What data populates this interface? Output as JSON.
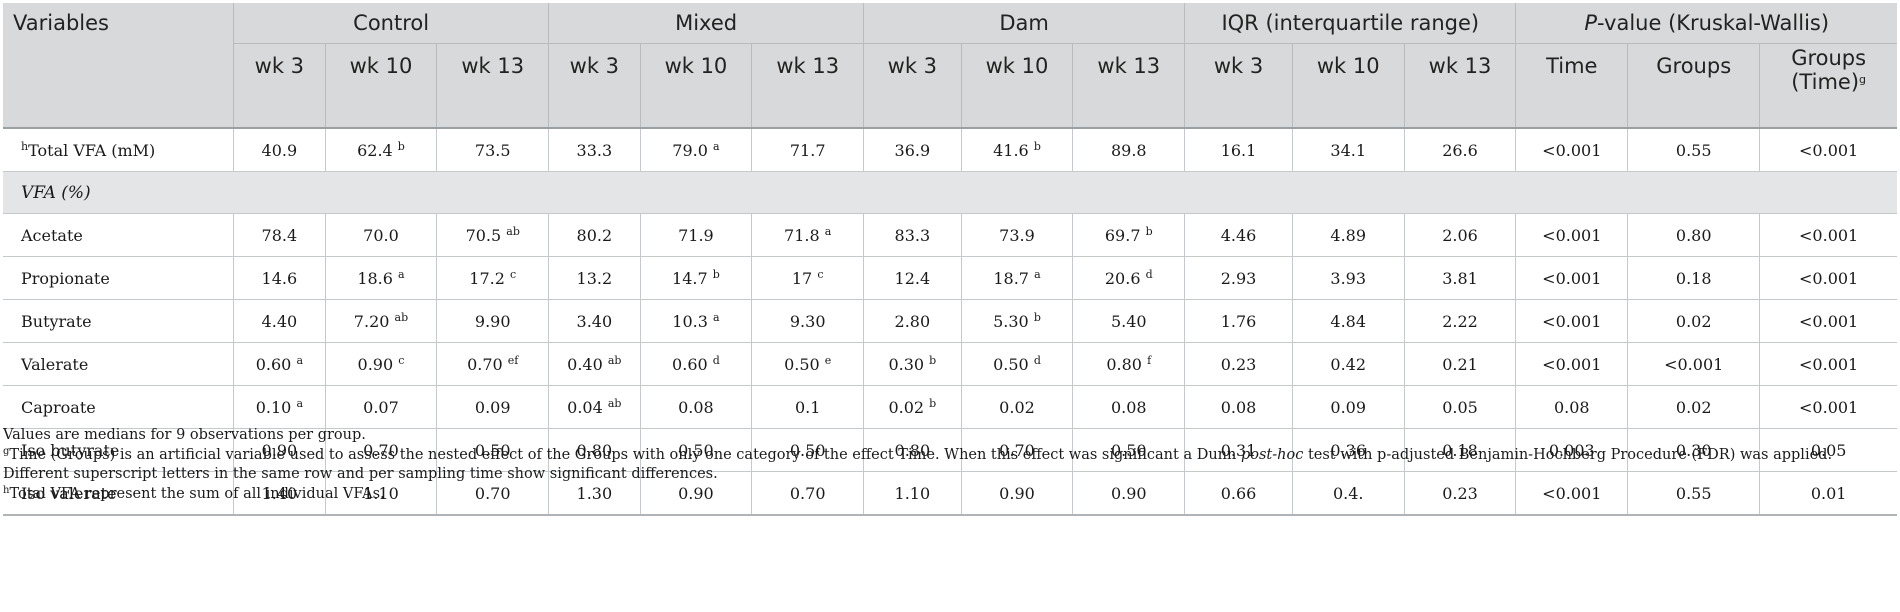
{
  "table": {
    "header_variables": "Variables",
    "groups": [
      "Control",
      "Mixed",
      "Dam",
      "IQR (interquartile range)"
    ],
    "pvalue_header": {
      "italic": "P",
      "rest": "-value (Kruskal-Wallis)"
    },
    "weeks": [
      "wk 3",
      "wk 10",
      "wk 13"
    ],
    "pvalue_subheaders": {
      "time": "Time",
      "groups": "Groups",
      "groups_time": "Groups (Time)",
      "groups_time_sup": "g"
    },
    "section_label": "VFA (%)",
    "total_row": {
      "label_sup": "h",
      "label": "Total VFA (mM)",
      "cells": [
        {
          "v": "40.9",
          "s": ""
        },
        {
          "v": "62.4",
          "s": "b"
        },
        {
          "v": "73.5",
          "s": ""
        },
        {
          "v": "33.3",
          "s": ""
        },
        {
          "v": "79.0",
          "s": "a"
        },
        {
          "v": "71.7",
          "s": ""
        },
        {
          "v": "36.9",
          "s": ""
        },
        {
          "v": "41.6",
          "s": "b"
        },
        {
          "v": "89.8",
          "s": ""
        },
        {
          "v": "16.1",
          "s": ""
        },
        {
          "v": "34.1",
          "s": ""
        },
        {
          "v": "26.6",
          "s": ""
        },
        {
          "v": "<0.001",
          "s": ""
        },
        {
          "v": "0.55",
          "s": ""
        },
        {
          "v": "<0.001",
          "s": ""
        }
      ]
    },
    "rows": [
      {
        "label": "Acetate",
        "cells": [
          {
            "v": "78.4",
            "s": ""
          },
          {
            "v": "70.0",
            "s": ""
          },
          {
            "v": "70.5",
            "s": "ab"
          },
          {
            "v": "80.2",
            "s": ""
          },
          {
            "v": "71.9",
            "s": ""
          },
          {
            "v": "71.8",
            "s": "a"
          },
          {
            "v": "83.3",
            "s": ""
          },
          {
            "v": "73.9",
            "s": ""
          },
          {
            "v": "69.7",
            "s": "b"
          },
          {
            "v": "4.46",
            "s": ""
          },
          {
            "v": "4.89",
            "s": ""
          },
          {
            "v": "2.06",
            "s": ""
          },
          {
            "v": "<0.001",
            "s": ""
          },
          {
            "v": "0.80",
            "s": ""
          },
          {
            "v": "<0.001",
            "s": ""
          }
        ]
      },
      {
        "label": "Propionate",
        "cells": [
          {
            "v": "14.6",
            "s": ""
          },
          {
            "v": "18.6",
            "s": "a"
          },
          {
            "v": "17.2",
            "s": "c"
          },
          {
            "v": "13.2",
            "s": ""
          },
          {
            "v": "14.7",
            "s": "b"
          },
          {
            "v": "17",
            "s": "c"
          },
          {
            "v": "12.4",
            "s": ""
          },
          {
            "v": "18.7",
            "s": "a"
          },
          {
            "v": "20.6",
            "s": "d"
          },
          {
            "v": "2.93",
            "s": ""
          },
          {
            "v": "3.93",
            "s": ""
          },
          {
            "v": "3.81",
            "s": ""
          },
          {
            "v": "<0.001",
            "s": ""
          },
          {
            "v": "0.18",
            "s": ""
          },
          {
            "v": "<0.001",
            "s": ""
          }
        ]
      },
      {
        "label": "Butyrate",
        "cells": [
          {
            "v": "4.40",
            "s": ""
          },
          {
            "v": "7.20",
            "s": "ab"
          },
          {
            "v": "9.90",
            "s": ""
          },
          {
            "v": "3.40",
            "s": ""
          },
          {
            "v": "10.3",
            "s": "a"
          },
          {
            "v": "9.30",
            "s": ""
          },
          {
            "v": "2.80",
            "s": ""
          },
          {
            "v": "5.30",
            "s": "b"
          },
          {
            "v": "5.40",
            "s": ""
          },
          {
            "v": "1.76",
            "s": ""
          },
          {
            "v": "4.84",
            "s": ""
          },
          {
            "v": "2.22",
            "s": ""
          },
          {
            "v": "<0.001",
            "s": ""
          },
          {
            "v": "0.02",
            "s": ""
          },
          {
            "v": "<0.001",
            "s": ""
          }
        ]
      },
      {
        "label": "Valerate",
        "cells": [
          {
            "v": "0.60",
            "s": "a"
          },
          {
            "v": "0.90",
            "s": "c"
          },
          {
            "v": "0.70",
            "s": "ef"
          },
          {
            "v": "0.40",
            "s": "ab"
          },
          {
            "v": "0.60",
            "s": "d"
          },
          {
            "v": "0.50",
            "s": "e"
          },
          {
            "v": "0.30",
            "s": "b"
          },
          {
            "v": "0.50",
            "s": "d"
          },
          {
            "v": "0.80",
            "s": "f"
          },
          {
            "v": "0.23",
            "s": ""
          },
          {
            "v": "0.42",
            "s": ""
          },
          {
            "v": "0.21",
            "s": ""
          },
          {
            "v": "<0.001",
            "s": ""
          },
          {
            "v": "<0.001",
            "s": ""
          },
          {
            "v": "<0.001",
            "s": ""
          }
        ]
      },
      {
        "label": "Caproate",
        "cells": [
          {
            "v": "0.10",
            "s": "a"
          },
          {
            "v": "0.07",
            "s": ""
          },
          {
            "v": "0.09",
            "s": ""
          },
          {
            "v": "0.04",
            "s": "ab"
          },
          {
            "v": "0.08",
            "s": ""
          },
          {
            "v": "0.1",
            "s": ""
          },
          {
            "v": "0.02",
            "s": "b"
          },
          {
            "v": "0.02",
            "s": ""
          },
          {
            "v": "0.08",
            "s": ""
          },
          {
            "v": "0.08",
            "s": ""
          },
          {
            "v": "0.09",
            "s": ""
          },
          {
            "v": "0.05",
            "s": ""
          },
          {
            "v": "0.08",
            "s": ""
          },
          {
            "v": "0.02",
            "s": ""
          },
          {
            "v": "<0.001",
            "s": ""
          }
        ]
      },
      {
        "label": "Iso butyrate",
        "cells": [
          {
            "v": "0.90",
            "s": ""
          },
          {
            "v": "0.70",
            "s": ""
          },
          {
            "v": "0.50",
            "s": ""
          },
          {
            "v": "0.80",
            "s": ""
          },
          {
            "v": "0.50",
            "s": ""
          },
          {
            "v": "0.50",
            "s": ""
          },
          {
            "v": "0.80",
            "s": ""
          },
          {
            "v": "0.70",
            "s": ""
          },
          {
            "v": "0.50",
            "s": ""
          },
          {
            "v": "0.31",
            "s": ""
          },
          {
            "v": "0.36",
            "s": ""
          },
          {
            "v": "0.18",
            "s": ""
          },
          {
            "v": "0.003",
            "s": ""
          },
          {
            "v": "0.30",
            "s": ""
          },
          {
            "v": "0.05",
            "s": ""
          }
        ]
      },
      {
        "label": "Iso valerate",
        "cells": [
          {
            "v": "1.40",
            "s": ""
          },
          {
            "v": "1.10",
            "s": ""
          },
          {
            "v": "0.70",
            "s": ""
          },
          {
            "v": "1.30",
            "s": ""
          },
          {
            "v": "0.90",
            "s": ""
          },
          {
            "v": "0.70",
            "s": ""
          },
          {
            "v": "1.10",
            "s": ""
          },
          {
            "v": "0.90",
            "s": ""
          },
          {
            "v": "0.90",
            "s": ""
          },
          {
            "v": "0.66",
            "s": ""
          },
          {
            "v": "0.4.",
            "s": ""
          },
          {
            "v": "0.23",
            "s": ""
          },
          {
            "v": "<0.001",
            "s": ""
          },
          {
            "v": "0.55",
            "s": ""
          },
          {
            "v": "0.01",
            "s": ""
          }
        ]
      }
    ]
  },
  "notes": {
    "line1": "Values are medians for 9 observations per group.",
    "g_sup": "g",
    "g_text_a": "Time (Groups) is an artificial variable used to assess the nested effect of the Groups with only one category of the effect Time. When this effect was significant a Dunn ",
    "g_text_italic": "post-hoc",
    "g_text_b": " test with p-adjusted Benjamin-Hochberg Procedure (FDR) was applied. Different superscript letters in the same row and per sampling time show significant differences.",
    "h_sup": "h",
    "h_text": "Total VFA represent the sum of all individual VFAs."
  }
}
